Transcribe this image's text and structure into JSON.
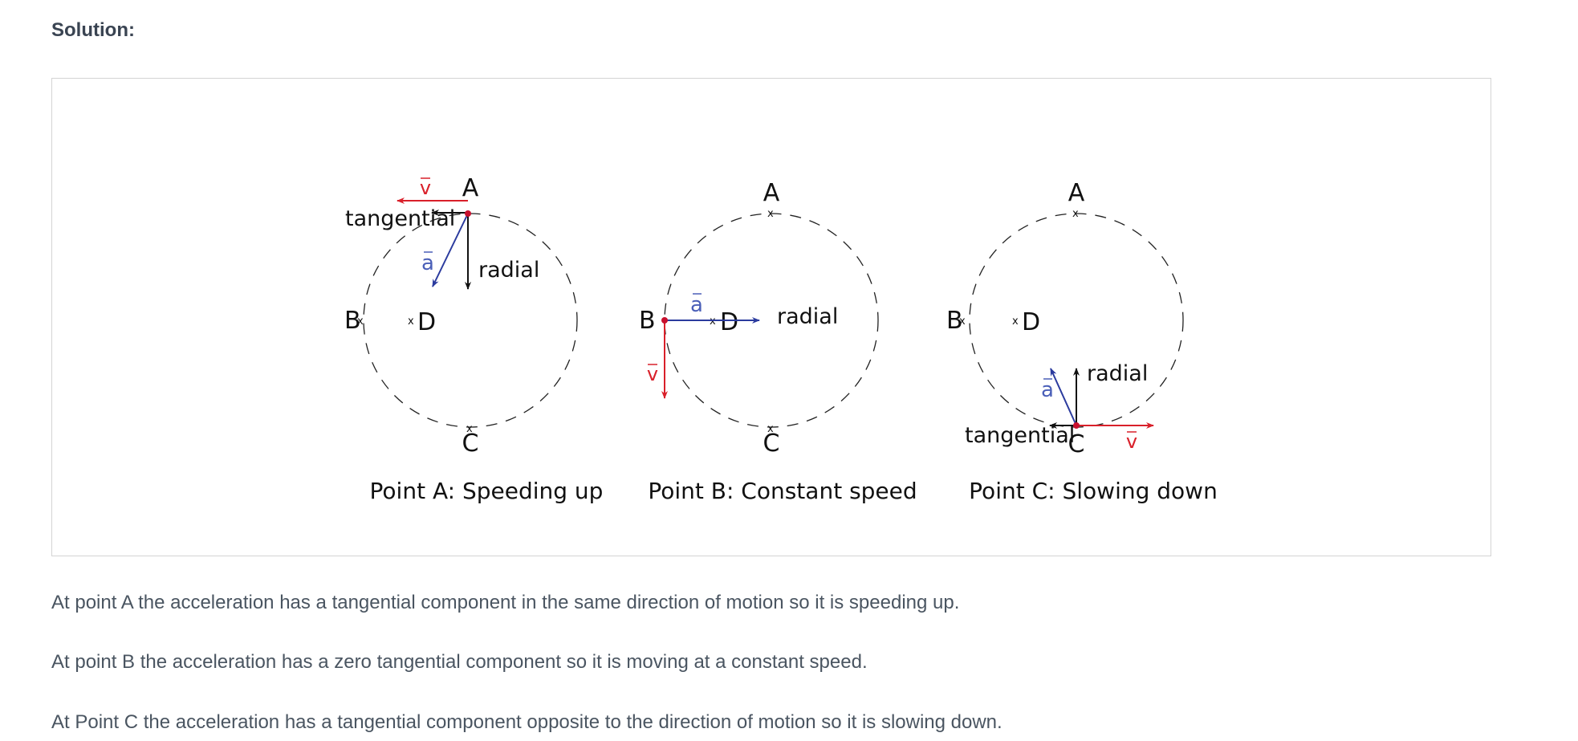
{
  "heading": "Solution:",
  "diagrams": [
    {
      "labels": {
        "A": "A",
        "B": "B",
        "C": "C",
        "D": "D"
      },
      "caption": "Point A: Speeding up",
      "vector_labels": {
        "v": "v",
        "a": "a",
        "radial": "radial",
        "tangential": "tangential"
      }
    },
    {
      "labels": {
        "A": "A",
        "B": "B",
        "C": "C",
        "D": "D"
      },
      "caption": "Point B: Constant speed",
      "vector_labels": {
        "v": "v",
        "a": "a",
        "radial": "radial"
      }
    },
    {
      "labels": {
        "A": "A",
        "B": "B",
        "C": "C",
        "D": "D"
      },
      "caption": "Point C: Slowing down",
      "vector_labels": {
        "v": "v",
        "a": "a",
        "radial": "radial",
        "tangential": "tangential"
      }
    }
  ],
  "colors": {
    "velocity": "#d9202a",
    "acceleration": "#2b3b9e",
    "component": "#111111",
    "point": "#c8102e"
  },
  "paragraphs": [
    "At point A the acceleration has a tangential component in the same direction of motion so it is speeding up.",
    "At point B the acceleration has a zero tangential component so it is moving at a constant speed.",
    "At Point C the acceleration has a tangential component opposite to the direction of motion so it is slowing down."
  ]
}
